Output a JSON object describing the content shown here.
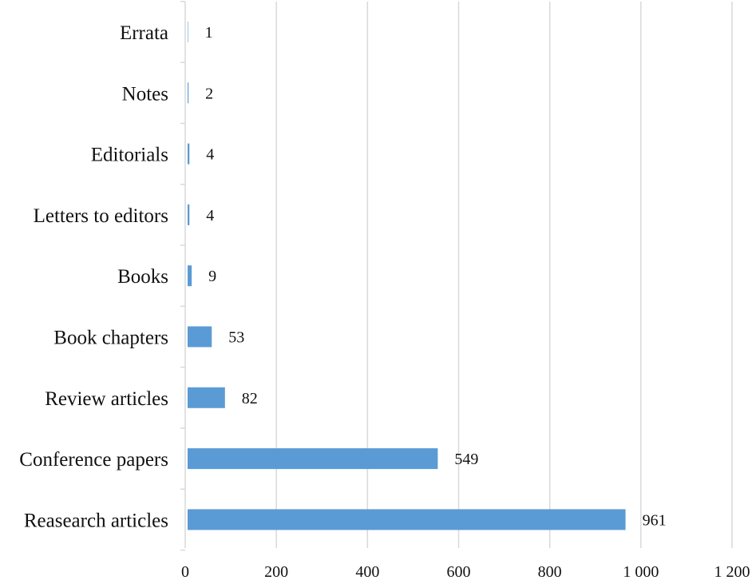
{
  "chart_data": {
    "type": "bar",
    "orientation": "horizontal",
    "categories": [
      "Errata",
      "Notes",
      "Editorials",
      "Letters to editors",
      "Books",
      "Book chapters",
      "Review articles",
      "Conference papers",
      "Reasearch articles"
    ],
    "values": [
      1,
      2,
      4,
      4,
      9,
      53,
      82,
      549,
      961
    ],
    "value_labels": [
      "1",
      "2",
      "4",
      "4",
      "9",
      "53",
      "82",
      "549",
      "961"
    ],
    "xlim": [
      0,
      1200
    ],
    "x_ticks": [
      0,
      200,
      400,
      600,
      800,
      1000,
      1200
    ],
    "x_tick_labels": [
      "0",
      "200",
      "400",
      "600",
      "800",
      "1 000",
      "1 200"
    ],
    "bar_color": "#5b9bd5",
    "grid": true,
    "legend": "none"
  }
}
